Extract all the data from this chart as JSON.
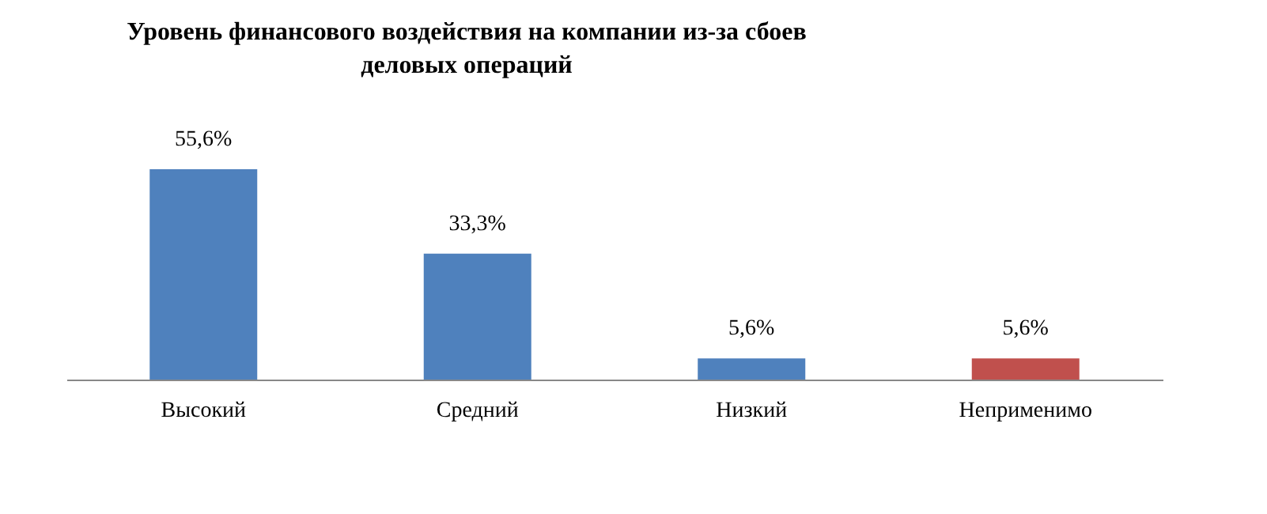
{
  "chart_data": {
    "type": "bar",
    "title": "Уровень финансового воздействия на компании из-за сбоев деловых операций",
    "categories": [
      "Высокий",
      "Средний",
      "Низкий",
      "Неприменимо"
    ],
    "values": [
      55.6,
      33.3,
      5.6,
      5.6
    ],
    "colors": [
      "#4f81bd",
      "#4f81bd",
      "#4f81bd",
      "#c0504d"
    ],
    "value_labels": [
      "55,6%",
      "33,3%",
      "5,6%",
      "5,6%"
    ],
    "grid": false
  }
}
